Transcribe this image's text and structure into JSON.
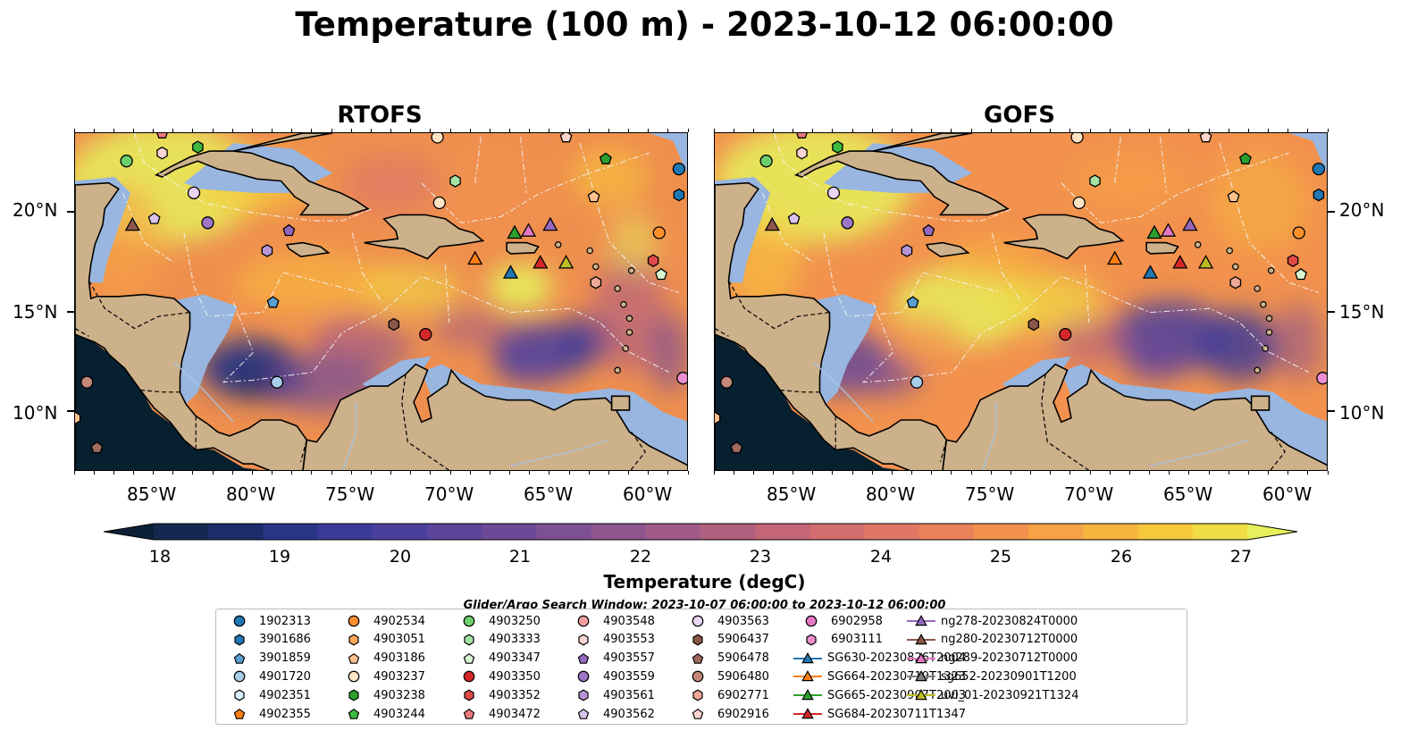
{
  "title": "Temperature (100 m) - 2023-10-12 06:00:00",
  "panels": [
    {
      "title": "RTOFS"
    },
    {
      "title": "GOFS"
    }
  ],
  "axes": {
    "lon_ticks": [
      "85°W",
      "80°W",
      "75°W",
      "70°W",
      "65°W",
      "60°W"
    ],
    "lat_ticks": [
      "20°N",
      "15°N",
      "10°N"
    ],
    "lon_range": [
      -89,
      -58
    ],
    "lat_range": [
      7,
      24
    ]
  },
  "colorbar": {
    "label": "Temperature (degC)",
    "ticks": [
      "18",
      "19",
      "20",
      "21",
      "22",
      "23",
      "24",
      "25",
      "26",
      "27"
    ],
    "min": 18,
    "max": 27,
    "colors": [
      "#0b2037",
      "#13284f",
      "#1c2d6b",
      "#2a3587",
      "#3a3a9a",
      "#4b3f9e",
      "#5c449c",
      "#6d4a98",
      "#7d5093",
      "#8e568e",
      "#a05b87",
      "#b26080",
      "#c46678",
      "#d46d6f",
      "#e07765",
      "#ea835a",
      "#f2924e",
      "#f6a345",
      "#f8b53e",
      "#f7c83c",
      "#f0dc45",
      "#e6f05c"
    ]
  },
  "search_window": "Glider/Argo Search Window: 2023-10-07 06:00:00 to 2023-10-12 06:00:00",
  "legend": [
    {
      "label": "1902313",
      "marker": "circle",
      "color": "#1f77b4"
    },
    {
      "label": "3901686",
      "marker": "hexagon",
      "color": "#1f77b4"
    },
    {
      "label": "3901859",
      "marker": "pentagon",
      "color": "#5a9fd0"
    },
    {
      "label": "4901720",
      "marker": "circle",
      "color": "#a6cdea"
    },
    {
      "label": "4902351",
      "marker": "hexagon",
      "color": "#d6ecf7"
    },
    {
      "label": "4902355",
      "marker": "pentagon",
      "color": "#ff7f0e"
    },
    {
      "label": "4902534",
      "marker": "circle",
      "color": "#ff8f2a"
    },
    {
      "label": "4903051",
      "marker": "hexagon",
      "color": "#ffa85a"
    },
    {
      "label": "4903186",
      "marker": "pentagon",
      "color": "#ffc28e"
    },
    {
      "label": "4903237",
      "marker": "circle",
      "color": "#ffe4c4"
    },
    {
      "label": "4903238",
      "marker": "hexagon",
      "color": "#2ca02c"
    },
    {
      "label": "4903244",
      "marker": "pentagon",
      "color": "#3cb83c"
    },
    {
      "label": "4903250",
      "marker": "circle",
      "color": "#6ccf6c"
    },
    {
      "label": "4903333",
      "marker": "hexagon",
      "color": "#a4e3a4"
    },
    {
      "label": "4903347",
      "marker": "pentagon",
      "color": "#d8f6d0"
    },
    {
      "label": "4903350",
      "marker": "circle",
      "color": "#d62728"
    },
    {
      "label": "4903352",
      "marker": "hexagon",
      "color": "#e04848"
    },
    {
      "label": "4903472",
      "marker": "pentagon",
      "color": "#ec7a7a"
    },
    {
      "label": "4903548",
      "marker": "circle",
      "color": "#f4a0a0"
    },
    {
      "label": "4903553",
      "marker": "hexagon",
      "color": "#fcd4d4"
    },
    {
      "label": "4903557",
      "marker": "pentagon",
      "color": "#9467bd"
    },
    {
      "label": "4903559",
      "marker": "circle",
      "color": "#9e75c6"
    },
    {
      "label": "4903561",
      "marker": "hexagon",
      "color": "#b496d6"
    },
    {
      "label": "4903562",
      "marker": "pentagon",
      "color": "#d8c4ec"
    },
    {
      "label": "4903563",
      "marker": "circle",
      "color": "#e8d4f4"
    },
    {
      "label": "5906437",
      "marker": "hexagon",
      "color": "#8c564b"
    },
    {
      "label": "5906478",
      "marker": "pentagon",
      "color": "#a06a5c"
    },
    {
      "label": "5906480",
      "marker": "circle",
      "color": "#c4887a"
    },
    {
      "label": "6902771",
      "marker": "hexagon",
      "color": "#f0a898"
    },
    {
      "label": "6902916",
      "marker": "pentagon",
      "color": "#fcd6cc"
    },
    {
      "label": "6902958",
      "marker": "circle",
      "color": "#e377c2"
    },
    {
      "label": "6903111",
      "marker": "hexagon",
      "color": "#ec8ed0"
    },
    {
      "label": "SG630-20230826T2004",
      "marker": "triangle-line",
      "color": "#1f77b4"
    },
    {
      "label": "SG664-20230719T1323",
      "marker": "triangle-line",
      "color": "#ff7f0e"
    },
    {
      "label": "SG665-20230907T2003",
      "marker": "triangle-line",
      "color": "#2ca02c"
    },
    {
      "label": "SG684-20230711T1347",
      "marker": "triangle-line",
      "color": "#d62728"
    },
    {
      "label": "ng278-20230824T0000",
      "marker": "triangle-line",
      "color": "#9467bd"
    },
    {
      "label": "ng280-20230712T0000",
      "marker": "triangle-line",
      "color": "#8c564b"
    },
    {
      "label": "ng289-20230712T0000",
      "marker": "triangle-line",
      "color": "#e377c2"
    },
    {
      "label": "sg652-20230901T1200",
      "marker": "triangle-line",
      "color": "#7f7f7f"
    },
    {
      "label": "uvi_01-20230921T1324",
      "marker": "triangle-line",
      "color": "#bcbd22"
    }
  ]
}
